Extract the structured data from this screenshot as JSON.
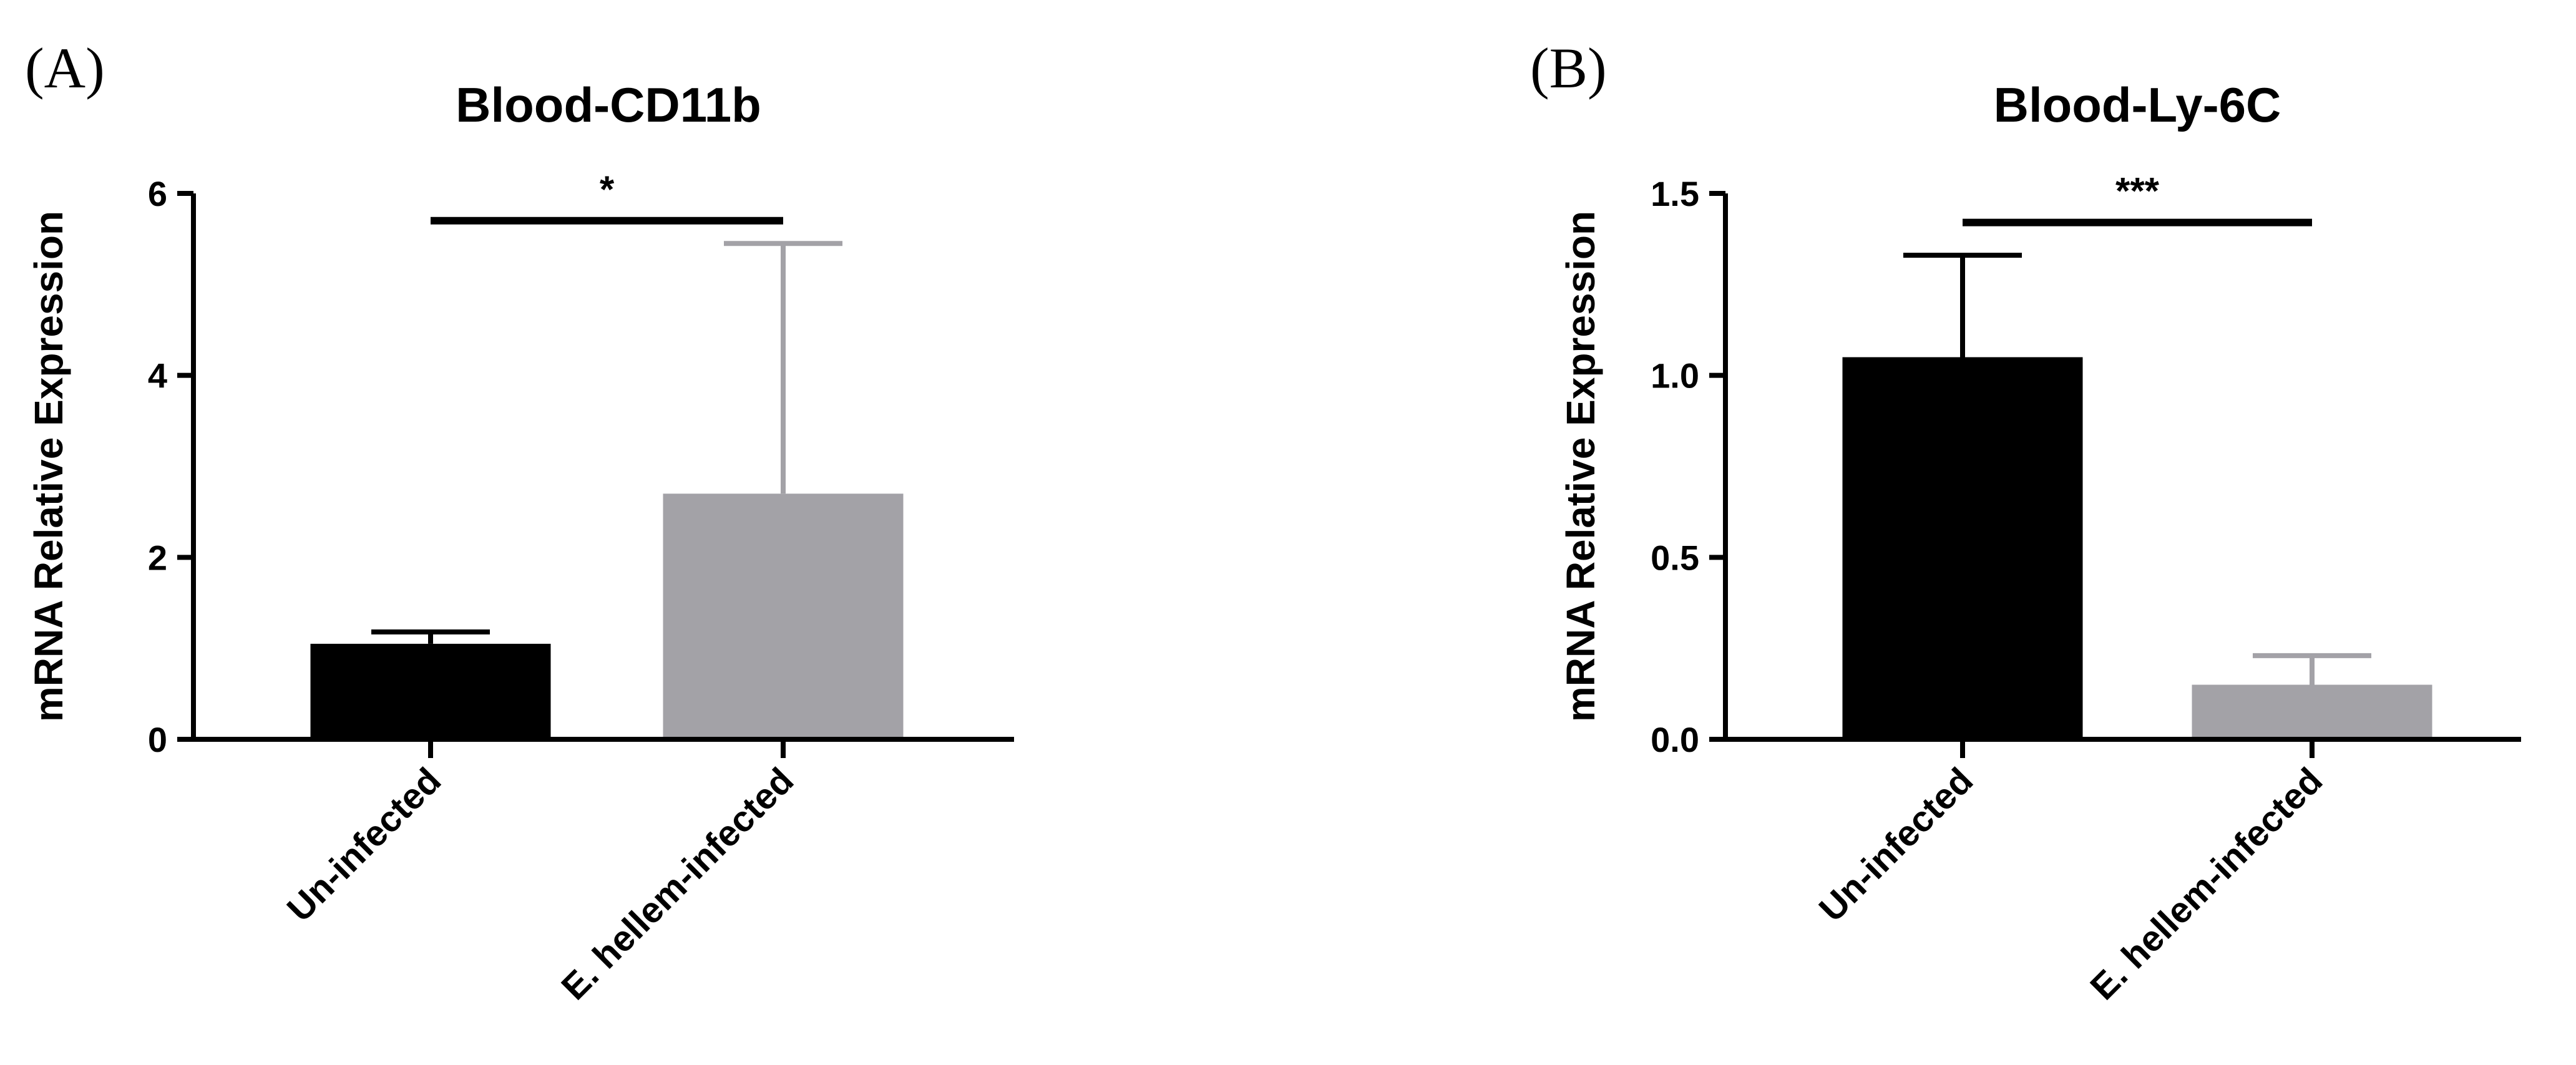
{
  "chart_data": [
    {
      "panel": "(A)",
      "type": "bar",
      "title": "Blood-CD11b",
      "xlabel": "",
      "ylabel": "mRNA Relative Expression",
      "categories": [
        "Un-infected",
        "E. hellem-infected"
      ],
      "values": [
        1.05,
        2.7
      ],
      "errors": [
        0.13,
        2.75
      ],
      "colors": [
        "#000000",
        "#a3a2a7"
      ],
      "ylim": [
        0,
        6
      ],
      "yticks": [
        0,
        2,
        4,
        6
      ],
      "ytick_labels": [
        "0",
        "2",
        "4",
        "6"
      ],
      "significance": {
        "label": "*",
        "between": [
          0,
          1
        ],
        "y": 5.7
      },
      "grid": false
    },
    {
      "panel": "(B)",
      "type": "bar",
      "title": "Blood-Ly-6C",
      "xlabel": "",
      "ylabel": "mRNA Relative Expression",
      "categories": [
        "Un-infected",
        "E. hellem-infected"
      ],
      "values": [
        1.05,
        0.15
      ],
      "errors": [
        0.28,
        0.08
      ],
      "colors": [
        "#000000",
        "#a3a2a7"
      ],
      "ylim": [
        0,
        1.5
      ],
      "yticks": [
        0,
        0.5,
        1.0,
        1.5
      ],
      "ytick_labels": [
        "0.0",
        "0.5",
        "1.0",
        "1.5"
      ],
      "significance": {
        "label": "***",
        "between": [
          0,
          1
        ],
        "y": 1.42
      },
      "grid": false
    }
  ]
}
